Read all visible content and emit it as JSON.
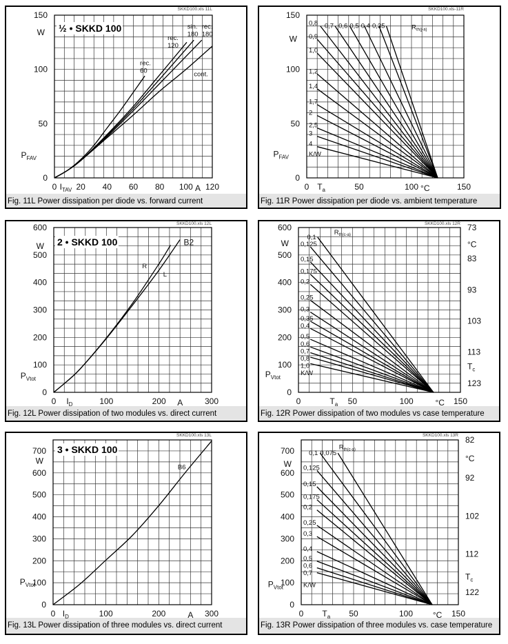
{
  "chart_data": [
    {
      "type": "line",
      "file_label": "SKKD100.xls 11L",
      "caption": "Fig. 11L Power dissipation per diode vs. forward current",
      "inset_title": "½ • SKKD 100",
      "x": {
        "range": [
          0,
          120
        ],
        "ticks": [
          0,
          20,
          40,
          60,
          80,
          100,
          120
        ],
        "label": {
          "main": "I",
          "sub": "TAV"
        },
        "unit": "A"
      },
      "y": {
        "range": [
          0,
          150
        ],
        "ticks": [
          0,
          50,
          100,
          150
        ],
        "label": {
          "main": "P",
          "sub": "FAV"
        },
        "unit": "W"
      },
      "grid": true,
      "series": [
        {
          "name": "rec. 60",
          "points": [
            [
              0,
              0
            ],
            [
              10,
              7
            ],
            [
              20,
              17
            ],
            [
              30,
              30
            ],
            [
              40,
              46
            ],
            [
              50,
              62
            ],
            [
              60,
              79
            ],
            [
              68.7,
              94
            ]
          ]
        },
        {
          "name": "rec. 120",
          "points": [
            [
              0,
              0
            ],
            [
              10,
              7
            ],
            [
              20,
              16
            ],
            [
              40,
              40
            ],
            [
              60,
              66
            ],
            [
              80,
              95
            ],
            [
              100.6,
              125
            ]
          ]
        },
        {
          "name": "sin. 180",
          "points": [
            [
              0,
              0
            ],
            [
              10,
              7
            ],
            [
              20,
              16
            ],
            [
              40,
              39
            ],
            [
              60,
              64
            ],
            [
              80,
              91
            ],
            [
              106,
              127
            ]
          ]
        },
        {
          "name": "rec. 180",
          "points": [
            [
              0,
              0
            ],
            [
              10,
              7
            ],
            [
              20,
              16
            ],
            [
              40,
              38
            ],
            [
              60,
              62
            ],
            [
              80,
              87
            ],
            [
              100,
              112
            ],
            [
              112,
              127
            ]
          ]
        },
        {
          "name": "cont.",
          "points": [
            [
              0,
              0
            ],
            [
              10,
              7
            ],
            [
              20,
              16
            ],
            [
              40,
              37
            ],
            [
              60,
              58
            ],
            [
              80,
              80
            ],
            [
              100,
              100
            ],
            [
              120,
              121.5
            ]
          ]
        }
      ]
    },
    {
      "type": "line",
      "file_label": "SKKD100.xls-11R",
      "caption": "Fig. 11R Power dissipation per diode vs. ambient temperature",
      "x": {
        "range": [
          0,
          150
        ],
        "ticks": [
          0,
          50,
          100,
          150
        ],
        "label": {
          "main": "T",
          "sub": "a"
        },
        "unit": "°C"
      },
      "y": {
        "range": [
          0,
          150
        ],
        "ticks": [
          0,
          50,
          100,
          150
        ],
        "label": {
          "main": "P",
          "sub": "FAV"
        },
        "unit": "W"
      },
      "grid": true,
      "param_label": {
        "main": "R",
        "sub": "th(j-a)"
      },
      "param_unit": "K/W",
      "series": [
        {
          "name": "0,35",
          "points": [
            [
              76,
              140
            ],
            [
              125,
              0
            ]
          ]
        },
        {
          "name": "0,4",
          "points": [
            [
              69,
              140
            ],
            [
              125,
              0
            ]
          ]
        },
        {
          "name": "0,5",
          "points": [
            [
              55,
              140
            ],
            [
              125,
              0
            ]
          ]
        },
        {
          "name": "0,6",
          "points": [
            [
              41,
              140
            ],
            [
              125,
              0
            ]
          ]
        },
        {
          "name": "0,7",
          "points": [
            [
              27,
              140
            ],
            [
              125,
              0
            ]
          ]
        },
        {
          "name": "0,8",
          "points": [
            [
              13,
              140
            ],
            [
              125,
              0
            ]
          ]
        },
        {
          "name": "0,9",
          "points": [
            [
              10,
              127.8
            ],
            [
              125,
              0
            ]
          ]
        },
        {
          "name": "1,0",
          "points": [
            [
              10,
              115
            ],
            [
              125,
              0
            ]
          ]
        },
        {
          "name": "1,2",
          "points": [
            [
              10,
              95.8
            ],
            [
              125,
              0
            ]
          ]
        },
        {
          "name": "1,4",
          "points": [
            [
              10,
              82.1
            ],
            [
              125,
              0
            ]
          ]
        },
        {
          "name": "1,7",
          "points": [
            [
              10,
              67.6
            ],
            [
              125,
              0
            ]
          ]
        },
        {
          "name": "2",
          "points": [
            [
              10,
              57.5
            ],
            [
              125,
              0
            ]
          ]
        },
        {
          "name": "2,5",
          "points": [
            [
              10,
              46
            ],
            [
              125,
              0
            ]
          ]
        },
        {
          "name": "3",
          "points": [
            [
              10,
              38.3
            ],
            [
              125,
              0
            ]
          ]
        },
        {
          "name": "4",
          "points": [
            [
              10,
              28.8
            ],
            [
              125,
              0
            ]
          ]
        }
      ]
    },
    {
      "type": "line",
      "file_label": "SKKD100.xls 12L",
      "caption": "Fig. 12L Power dissipation of two modules vs. direct current",
      "inset_title": "2 • SKKD 100",
      "x": {
        "range": [
          0,
          300
        ],
        "ticks": [
          0,
          100,
          200,
          300
        ],
        "label": {
          "main": "I",
          "sub": "D"
        },
        "unit": "A"
      },
      "y": {
        "range": [
          0,
          600
        ],
        "ticks": [
          0,
          100,
          200,
          300,
          400,
          500,
          600
        ],
        "label": {
          "main": "P",
          "sub": "Vtot"
        },
        "unit": "W"
      },
      "grid": true,
      "annotation": "B2",
      "series": [
        {
          "name": "R",
          "points": [
            [
              0,
              0
            ],
            [
              25,
              40
            ],
            [
              50,
              85
            ],
            [
              100,
              198
            ],
            [
              150,
              325
            ],
            [
              200,
              468
            ],
            [
              222,
              536
            ]
          ]
        },
        {
          "name": "L",
          "points": [
            [
              0,
              0
            ],
            [
              25,
              40
            ],
            [
              50,
              85
            ],
            [
              100,
              196
            ],
            [
              150,
              318
            ],
            [
              200,
              445
            ],
            [
              240,
              556
            ]
          ]
        }
      ]
    },
    {
      "type": "line",
      "file_label": "SKKD100.xls 12R",
      "caption": "Fig. 12R Power dissipation of two modules vs case temperature",
      "x": {
        "range": [
          0,
          150
        ],
        "ticks": [
          0,
          50,
          100,
          150
        ],
        "label": {
          "main": "T",
          "sub": "a"
        },
        "unit": "°C"
      },
      "y": {
        "range": [
          0,
          600
        ],
        "ticks": [
          0,
          100,
          200,
          300,
          400,
          500,
          600
        ],
        "label": {
          "main": "P",
          "sub": "Vtot"
        },
        "unit": "W"
      },
      "y_right": {
        "range": [
          73,
          125.9
        ],
        "ticks": [
          73,
          83,
          93,
          103,
          113,
          123
        ],
        "label": {
          "main": "T",
          "sub": "c"
        },
        "unit": "°C"
      },
      "grid": true,
      "param_label": {
        "main": "R",
        "sub": "th(c-a)"
      },
      "param_unit": "K/W",
      "series": [
        {
          "name": "0,1",
          "points": [
            [
              17.7,
              565
            ],
            [
              125,
              0
            ]
          ]
        },
        {
          "name": "0,125",
          "points": [
            [
              11,
              530.2
            ],
            [
              125,
              0
            ]
          ]
        },
        {
          "name": "0,15",
          "points": [
            [
              11,
              475
            ],
            [
              125,
              0
            ]
          ]
        },
        {
          "name": "0,175",
          "points": [
            [
              11,
              430.2
            ],
            [
              125,
              0
            ]
          ]
        },
        {
          "name": "0,2",
          "points": [
            [
              11,
              393.1
            ],
            [
              125,
              0
            ]
          ]
        },
        {
          "name": "0,25",
          "points": [
            [
              11,
              335.3
            ],
            [
              125,
              0
            ]
          ]
        },
        {
          "name": "0,3",
          "points": [
            [
              11,
              292.3
            ],
            [
              125,
              0
            ]
          ]
        },
        {
          "name": "0,35",
          "points": [
            [
              11,
              259.1
            ],
            [
              125,
              0
            ]
          ]
        },
        {
          "name": "0,4",
          "points": [
            [
              11,
              232.7
            ],
            [
              125,
              0
            ]
          ]
        },
        {
          "name": "0,5",
          "points": [
            [
              11,
              193.2
            ],
            [
              125,
              0
            ]
          ]
        },
        {
          "name": "0,6",
          "points": [
            [
              11,
              165.2
            ],
            [
              125,
              0
            ]
          ]
        },
        {
          "name": "0,7",
          "points": [
            [
              11,
              144.3
            ],
            [
              125,
              0
            ]
          ]
        },
        {
          "name": "0,8",
          "points": [
            [
              11,
              128.1
            ],
            [
              125,
              0
            ]
          ]
        },
        {
          "name": "1,0",
          "points": [
            [
              11,
              104.6
            ],
            [
              125,
              0
            ]
          ]
        }
      ]
    },
    {
      "type": "line",
      "file_label": "SKKD100.xls 13L",
      "caption": "Fig. 13L Power dissipation of three modules vs. direct current",
      "inset_title": "3 • SKKD 100",
      "x": {
        "range": [
          0,
          300
        ],
        "ticks": [
          0,
          100,
          200,
          300
        ],
        "label": {
          "main": "I",
          "sub": "D"
        },
        "unit": "A"
      },
      "y": {
        "range": [
          0,
          750
        ],
        "ticks": [
          0,
          100,
          200,
          300,
          400,
          500,
          600,
          700
        ],
        "label": {
          "main": "P",
          "sub": "Vtot"
        },
        "unit": "W"
      },
      "grid": true,
      "series": [
        {
          "name": "B6",
          "points": [
            [
              0,
              0
            ],
            [
              50,
              92
            ],
            [
              100,
              203
            ],
            [
              150,
              315
            ],
            [
              200,
              451
            ],
            [
              250,
              601
            ],
            [
              300,
              745
            ]
          ]
        }
      ]
    },
    {
      "type": "line",
      "file_label": "SKKD100.xls 13R",
      "caption": "Fig. 13R Power dissipation of three modules vs. case temperature",
      "x": {
        "range": [
          0,
          150
        ],
        "ticks": [
          0,
          50,
          100,
          150
        ],
        "label": {
          "main": "T",
          "sub": "a"
        },
        "unit": "°C"
      },
      "y": {
        "range": [
          0,
          750
        ],
        "ticks": [
          0,
          100,
          200,
          300,
          400,
          500,
          600,
          700
        ],
        "label": {
          "main": "P",
          "sub": "Vtot"
        },
        "unit": "W"
      },
      "y_right": {
        "range": [
          82,
          125.3
        ],
        "ticks": [
          82,
          92,
          102,
          112,
          122
        ],
        "label": {
          "main": "T",
          "sub": "c"
        },
        "unit": "°C"
      },
      "grid": true,
      "param_label": {
        "main": "R",
        "sub": "th(c-a)"
      },
      "param_unit": "K/W",
      "series": [
        {
          "name": "0,075",
          "points": [
            [
              35,
              690
            ],
            [
              125,
              0
            ]
          ]
        },
        {
          "name": "0,1",
          "points": [
            [
              18,
              690
            ],
            [
              125,
              0
            ]
          ]
        },
        {
          "name": "0,125",
          "points": [
            [
              15,
              611
            ],
            [
              125,
              0
            ]
          ]
        },
        {
          "name": "0,15",
          "points": [
            [
              15,
              537
            ],
            [
              125,
              0
            ]
          ]
        },
        {
          "name": "0,175",
          "points": [
            [
              15,
              478
            ],
            [
              125,
              0
            ]
          ]
        },
        {
          "name": "0,2",
          "points": [
            [
              15,
              431
            ],
            [
              125,
              0
            ]
          ]
        },
        {
          "name": "0,25",
          "points": [
            [
              15,
              361
            ],
            [
              125,
              0
            ]
          ]
        },
        {
          "name": "0,3",
          "points": [
            [
              15,
              310
            ],
            [
              125,
              0
            ]
          ]
        },
        {
          "name": "0,4",
          "points": [
            [
              15,
              242
            ],
            [
              125,
              0
            ]
          ]
        },
        {
          "name": "0,5",
          "points": [
            [
              15,
              198
            ],
            [
              125,
              0
            ]
          ]
        },
        {
          "name": "0,6",
          "points": [
            [
              15,
              168
            ],
            [
              125,
              0
            ]
          ]
        },
        {
          "name": "0,7",
          "points": [
            [
              15,
              145.7
            ],
            [
              125,
              0
            ]
          ]
        }
      ]
    }
  ]
}
